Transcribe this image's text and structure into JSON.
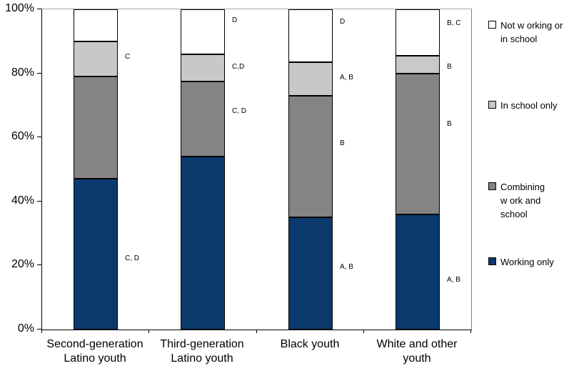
{
  "chart_data": {
    "type": "bar",
    "stacked": true,
    "title": "",
    "xlabel": "",
    "ylabel": "",
    "ylim": [
      0,
      100
    ],
    "grid": "top-line-only",
    "legend_position": "right",
    "categories": [
      "Second-generation Latino youth",
      "Third-generation Latino youth",
      "Black youth",
      "White and other youth"
    ],
    "category_label_lines": [
      [
        "Second-generation",
        "Latino youth"
      ],
      [
        "Third-generation",
        "Latino youth"
      ],
      [
        "Black youth"
      ],
      [
        "White and other",
        "youth"
      ]
    ],
    "series": [
      {
        "name": "Working only",
        "color": "#0a3a6c",
        "values": [
          47,
          54,
          35,
          36
        ]
      },
      {
        "name": "Combining work and school",
        "color": "#848484",
        "values": [
          32,
          23.5,
          38,
          44
        ]
      },
      {
        "name": "In school only",
        "color": "#c8c8c8",
        "values": [
          11,
          8.5,
          10.5,
          5.5
        ]
      },
      {
        "name": "Not working or in school",
        "color": "#ffffff",
        "values": [
          10,
          14,
          16.5,
          14.5
        ]
      }
    ],
    "y_axis": {
      "tick_labels": [
        "0%",
        "20%",
        "40%",
        "60%",
        "80%",
        "100%"
      ],
      "tick_values": [
        0,
        20,
        40,
        60,
        80,
        100
      ]
    },
    "legend": {
      "items": [
        {
          "series": "Not working or in school",
          "swatch_color": "#ffffff",
          "lines": [
            "Not w orking or",
            "in school"
          ]
        },
        {
          "series": "In school only",
          "swatch_color": "#c8c8c8",
          "lines": [
            "In school only"
          ]
        },
        {
          "series": "Combining work and school",
          "swatch_color": "#848484",
          "lines": [
            "Combining",
            "w ork and",
            "school"
          ]
        },
        {
          "series": "Working only",
          "swatch_color": "#0a3a6c",
          "lines": [
            "Working only"
          ]
        }
      ]
    },
    "annotations": [
      {
        "category": 0,
        "labels": [
          {
            "text": "C",
            "y": 85
          },
          {
            "text": "C, D",
            "y": 22
          }
        ]
      },
      {
        "category": 1,
        "labels": [
          {
            "text": "D",
            "y": 96.5
          },
          {
            "text": "C,D",
            "y": 82
          },
          {
            "text": "C, D",
            "y": 68
          }
        ]
      },
      {
        "category": 2,
        "labels": [
          {
            "text": "D",
            "y": 96
          },
          {
            "text": "A, B",
            "y": 78.5
          },
          {
            "text": "B",
            "y": 58
          },
          {
            "text": "A, B",
            "y": 19.5
          }
        ]
      },
      {
        "category": 3,
        "labels": [
          {
            "text": "B, C",
            "y": 95.5
          },
          {
            "text": "B",
            "y": 82
          },
          {
            "text": "B",
            "y": 64
          },
          {
            "text": "A, B",
            "y": 15.5
          }
        ]
      }
    ],
    "colors": {
      "axis": "#000000",
      "top_gridline": "#a6a6a6",
      "plot_right_border": "#808080",
      "background": "#ffffff",
      "text": "#000000"
    }
  }
}
